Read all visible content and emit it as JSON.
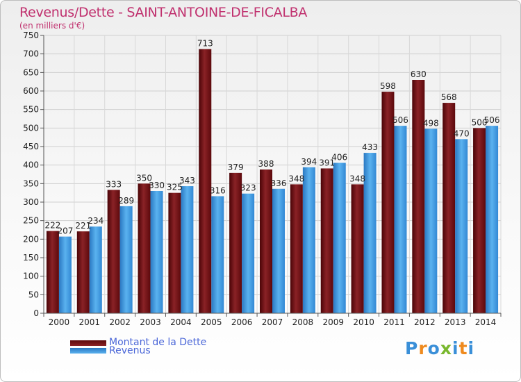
{
  "header": {
    "title": "Revenus/Dette - SAINT-ANTOINE-DE-FICALBA",
    "subtitle": "(en milliers d'€)"
  },
  "logo": {
    "text": "Proxiti",
    "letters": [
      {
        "ch": "P",
        "color": "#3a8fd8"
      },
      {
        "ch": "r",
        "color": "#ef8a1e"
      },
      {
        "ch": "o",
        "color": "#3a8fd8"
      },
      {
        "ch": "x",
        "color": "#79b82e"
      },
      {
        "ch": "i",
        "color": "#3a8fd8"
      },
      {
        "ch": "t",
        "color": "#ef8a1e"
      },
      {
        "ch": "i",
        "color": "#3a8fd8"
      }
    ]
  },
  "colors": {
    "dette": "#7d1416",
    "revenus": "#3a95df",
    "title": "#c0306e",
    "legend_text": "#4a66d8"
  },
  "chart_data": {
    "type": "bar",
    "title": "Revenus/Dette - SAINT-ANTOINE-DE-FICALBA",
    "subtitle": "(en milliers d'€)",
    "categories": [
      "2000",
      "2001",
      "2002",
      "2003",
      "2004",
      "2005",
      "2006",
      "2007",
      "2008",
      "2009",
      "2010",
      "2011",
      "2012",
      "2013",
      "2014"
    ],
    "series": [
      {
        "name": "Montant de la Dette",
        "values": [
          222,
          221,
          333,
          350,
          325,
          713,
          379,
          388,
          348,
          391,
          348,
          598,
          630,
          568,
          500
        ]
      },
      {
        "name": "Revenus",
        "values": [
          207,
          234,
          289,
          330,
          343,
          316,
          323,
          336,
          394,
          406,
          433,
          506,
          498,
          470,
          506
        ]
      }
    ],
    "value_labels": {
      "Montant de la Dette": [
        "222",
        "221",
        "333",
        "350",
        "325",
        "713",
        "379",
        "388",
        "348",
        "391",
        "348",
        "598",
        "630",
        "568",
        "500"
      ],
      "Revenus": [
        "207",
        "234",
        "289",
        "330",
        "343",
        "316",
        "323",
        "336",
        "394",
        "406",
        "433",
        "506",
        "498",
        "470",
        "506"
      ]
    },
    "ylim": [
      0,
      750
    ],
    "yticks": [
      0,
      50,
      100,
      150,
      200,
      250,
      300,
      350,
      400,
      450,
      500,
      550,
      600,
      650,
      700,
      750
    ],
    "grid": true,
    "legend": "bottom-left"
  }
}
